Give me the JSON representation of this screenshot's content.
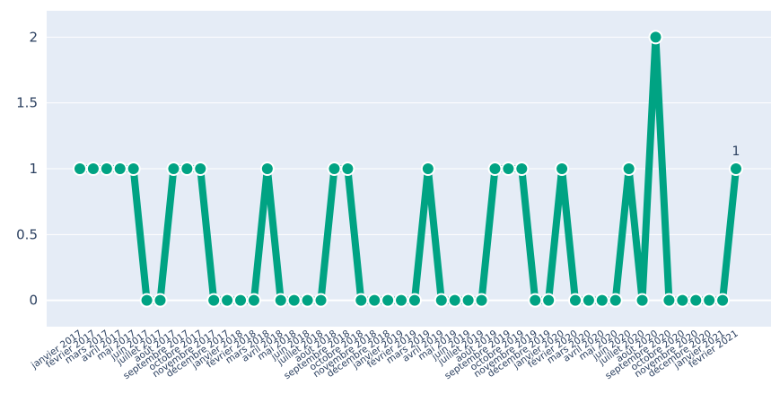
{
  "chart_data": {
    "type": "line",
    "title": "",
    "xlabel": "",
    "ylabel": "",
    "ylim": [
      -0.2,
      2.2
    ],
    "y_ticks": [
      0,
      0.5,
      1,
      1.5,
      2
    ],
    "y_tick_labels": [
      "0",
      "0.5",
      "1",
      "1.5",
      "2"
    ],
    "grid": true,
    "categories": [
      "janvier 2017",
      "février 2017",
      "mars 2017",
      "avril 2017",
      "mai 2017",
      "juin 2017",
      "juillet 2017",
      "août 2017",
      "septembre 2017",
      "octobre 2017",
      "novembre 2017",
      "décembre 2017",
      "janvier 2018",
      "février 2018",
      "mars 2018",
      "avril 2018",
      "mai 2018",
      "juin 2018",
      "juillet 2018",
      "août 2018",
      "septembre 2018",
      "octobre 2018",
      "novembre 2018",
      "décembre 2018",
      "janvier 2019",
      "février 2019",
      "mars 2019",
      "avril 2019",
      "mai 2019",
      "juin 2019",
      "juillet 2019",
      "août 2019",
      "septembre 2019",
      "octobre 2019",
      "novembre 2019",
      "décembre 2019",
      "janvier 2020",
      "février 2020",
      "mars 2020",
      "avril 2020",
      "mai 2020",
      "juin 2020",
      "juillet 2020",
      "août 2020",
      "septembre 2020",
      "octobre 2020",
      "novembre 2020",
      "décembre 2020",
      "janvier 2021",
      "février 2021"
    ],
    "x_tick_labels": [
      "janvier 2017",
      "février 2017",
      "mars 2017",
      "avril 2017",
      "mai 2017",
      "juin 2017",
      "juillet 2017",
      "août 2017",
      "septembre 2017",
      "octobre 2017",
      "novembre 2017",
      "décembre 2017",
      "janvier 2018",
      "février 2018",
      "mars 2018",
      "avril 2018",
      "mai 2018",
      "juin 2018",
      "juillet 2018",
      "août 2018",
      "septembre 2018",
      "octobre 2018",
      "novembre 2018",
      "décembre 2018",
      "janvier 2019",
      "février 2019",
      "mars 2019",
      "avril 2019",
      "mai 2019",
      "juin 2019",
      "juillet 2019",
      "août 2019",
      "septembre 2019",
      "octobre 2019",
      "novembre 2019",
      "décembre 2019",
      "janvier 2020",
      "février 2020",
      "mars 2020",
      "avril 2020",
      "mai 2020",
      "juin 2020",
      "juillet 2020",
      "août 2020",
      "septembre 2020",
      "octobre 2020",
      "novembre 2020",
      "décembre 2020",
      "janvier 2021",
      "février 2021"
    ],
    "series": [
      {
        "values": [
          1,
          1,
          1,
          1,
          1,
          0,
          0,
          1,
          1,
          1,
          0,
          0,
          0,
          0,
          1,
          0,
          0,
          0,
          0,
          1,
          1,
          0,
          0,
          0,
          0,
          0,
          1,
          0,
          0,
          0,
          0,
          1,
          1,
          1,
          0,
          0,
          1,
          0,
          0,
          0,
          0,
          1,
          0,
          2,
          0,
          0,
          0,
          0,
          0,
          1
        ],
        "color": "#00a383"
      }
    ],
    "annotations": [
      {
        "text": "1",
        "category": "février 2021",
        "value": 1
      }
    ],
    "colors": {
      "plot_background": "#e5ecf6",
      "grid": "#ffffff",
      "line": "#00a383",
      "marker_outline": "#ffffff",
      "text": "#2a3f5f"
    }
  }
}
